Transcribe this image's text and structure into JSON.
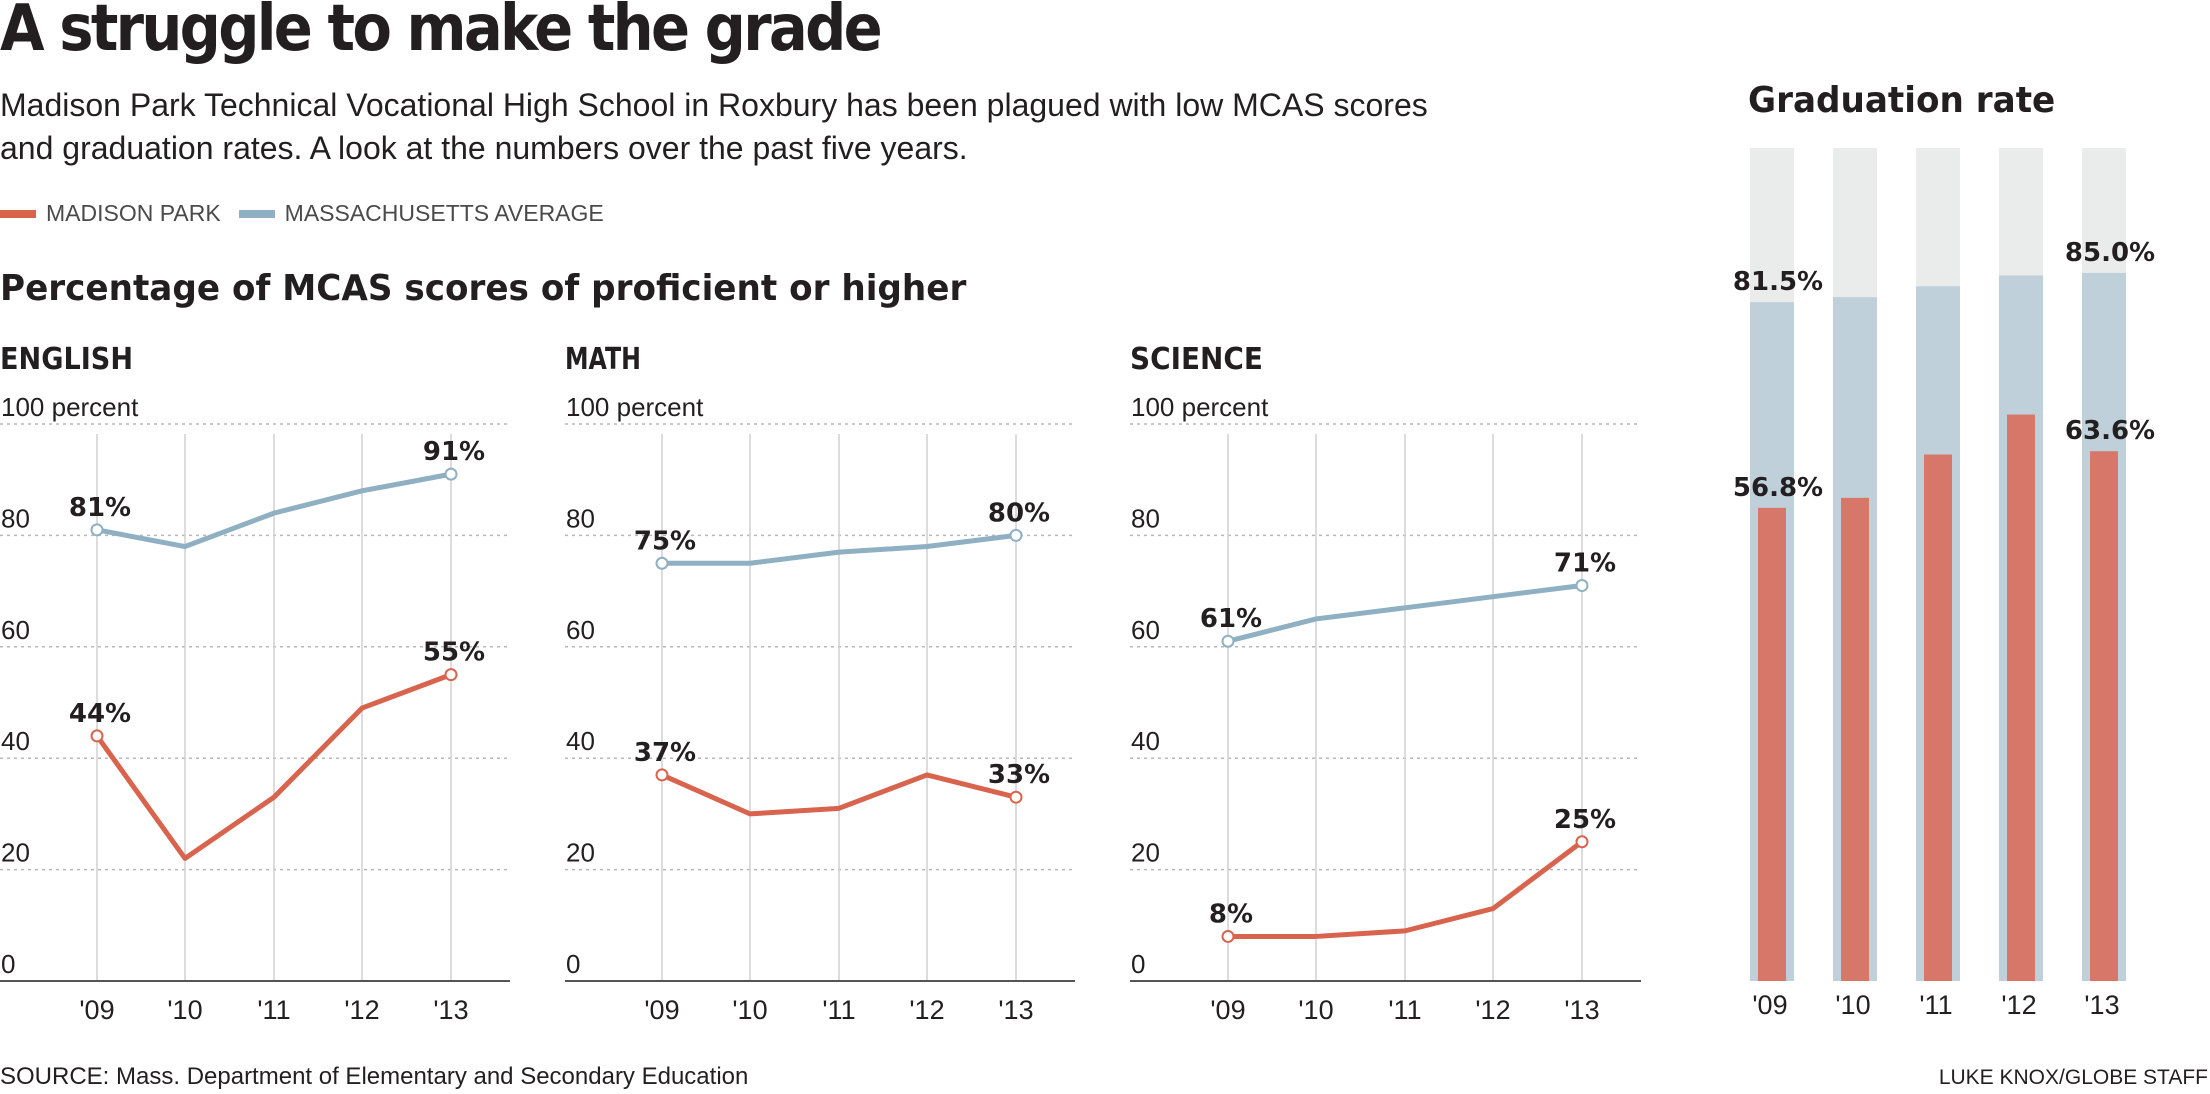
{
  "headline": "A struggle to make the grade",
  "intro": "Madison Park Technical Vocational High School in Roxbury has been plagued with low MCAS scores and graduation rates. A look at the numbers over the past five years.",
  "legend": [
    {
      "label": "MADISON PARK",
      "color": "#d9644e"
    },
    {
      "label": "MASSACHUSETTS AVERAGE",
      "color": "#8fb0c2"
    }
  ],
  "subhead": "Percentage of MCAS scores of proficient or higher",
  "colors": {
    "madison": "#d9644e",
    "mass": "#8fb0c2",
    "grad_madison": "#d6776a",
    "grad_mass": "#bfd0db",
    "grad_bg": "#eaebeb"
  },
  "chart_data": [
    {
      "type": "line",
      "title": "ENGLISH",
      "ylabel": "percent",
      "ylim": [
        0,
        100
      ],
      "yticks": [
        "0",
        "20",
        "40",
        "60",
        "80",
        "100"
      ],
      "grid": true,
      "categories": [
        "'09",
        "'10",
        "'11",
        "'12",
        "'13"
      ],
      "series": [
        {
          "name": "MASSACHUSETTS AVERAGE",
          "values": [
            81,
            78,
            84,
            88,
            91
          ],
          "labels": [
            "81%",
            "",
            "",
            "",
            "91%"
          ]
        },
        {
          "name": "MADISON PARK",
          "values": [
            44,
            22,
            33,
            49,
            55
          ],
          "labels": [
            "44%",
            "",
            "",
            "",
            "55%"
          ]
        }
      ]
    },
    {
      "type": "line",
      "title": "MATH",
      "ylabel": "percent",
      "ylim": [
        0,
        100
      ],
      "yticks": [
        "0",
        "20",
        "40",
        "60",
        "80",
        "100"
      ],
      "grid": true,
      "categories": [
        "'09",
        "'10",
        "'11",
        "'12",
        "'13"
      ],
      "series": [
        {
          "name": "MASSACHUSETTS AVERAGE",
          "values": [
            75,
            75,
            77,
            78,
            80
          ],
          "labels": [
            "75%",
            "",
            "",
            "",
            "80%"
          ]
        },
        {
          "name": "MADISON PARK",
          "values": [
            37,
            30,
            31,
            37,
            33
          ],
          "labels": [
            "37%",
            "",
            "",
            "",
            "33%"
          ]
        }
      ]
    },
    {
      "type": "line",
      "title": "SCIENCE",
      "ylabel": "percent",
      "ylim": [
        0,
        100
      ],
      "yticks": [
        "0",
        "20",
        "40",
        "60",
        "80",
        "100"
      ],
      "grid": true,
      "categories": [
        "'09",
        "'10",
        "'11",
        "'12",
        "'13"
      ],
      "series": [
        {
          "name": "MASSACHUSETTS AVERAGE",
          "values": [
            61,
            65,
            67,
            69,
            71
          ],
          "labels": [
            "61%",
            "",
            "",
            "",
            "71%"
          ]
        },
        {
          "name": "MADISON PARK",
          "values": [
            8,
            8,
            9,
            13,
            25
          ],
          "labels": [
            "8%",
            "",
            "",
            "",
            "25%"
          ]
        }
      ]
    },
    {
      "type": "bar",
      "title": "Graduation rate",
      "ylim": [
        0,
        100
      ],
      "categories": [
        "'09",
        "'10",
        "'11",
        "'12",
        "'13"
      ],
      "series": [
        {
          "name": "MASSACHUSETTS AVERAGE",
          "values": [
            81.5,
            82.1,
            83.4,
            84.7,
            85.0
          ],
          "labels": [
            "81.5%",
            "",
            "",
            "",
            "85.0%"
          ]
        },
        {
          "name": "MADISON PARK",
          "values": [
            56.8,
            58.0,
            63.2,
            68.0,
            63.6
          ],
          "labels": [
            "56.8%",
            "",
            "",
            "",
            "63.6%"
          ]
        }
      ]
    }
  ],
  "source": "SOURCE: Mass. Department of Elementary and Secondary Education",
  "credit": "LUKE KNOX/GLOBE STAFF"
}
